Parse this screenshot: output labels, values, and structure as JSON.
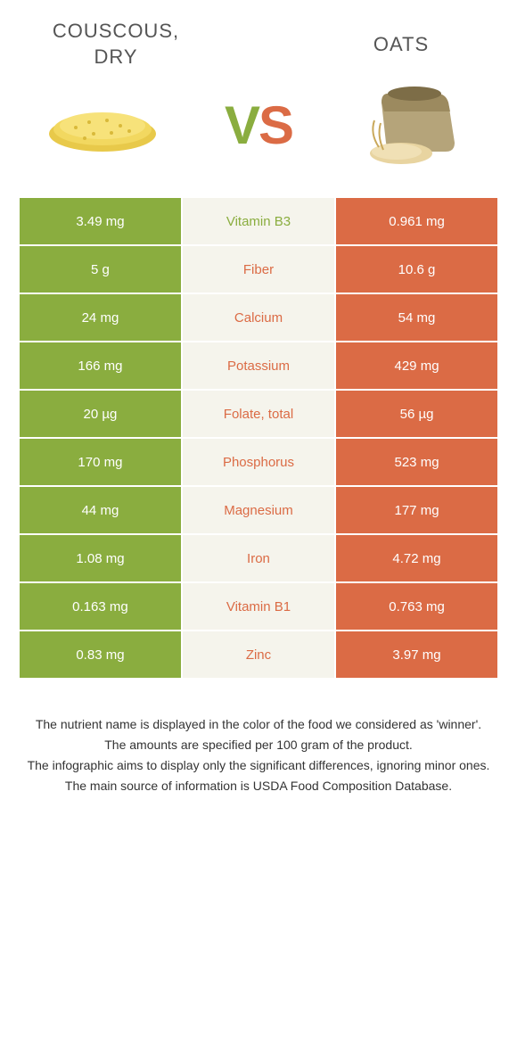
{
  "header": {
    "left_title": "COUSCOUS, DRY",
    "right_title": "OATS",
    "vs_v": "V",
    "vs_s": "S"
  },
  "colors": {
    "left": "#8aad3f",
    "right": "#db6b45",
    "mid_bg": "#f5f4ec"
  },
  "rows": [
    {
      "left": "3.49 mg",
      "name": "Vitamin B3",
      "right": "0.961 mg",
      "winner": "left"
    },
    {
      "left": "5 g",
      "name": "Fiber",
      "right": "10.6 g",
      "winner": "right"
    },
    {
      "left": "24 mg",
      "name": "Calcium",
      "right": "54 mg",
      "winner": "right"
    },
    {
      "left": "166 mg",
      "name": "Potassium",
      "right": "429 mg",
      "winner": "right"
    },
    {
      "left": "20 µg",
      "name": "Folate, total",
      "right": "56 µg",
      "winner": "right"
    },
    {
      "left": "170 mg",
      "name": "Phosphorus",
      "right": "523 mg",
      "winner": "right"
    },
    {
      "left": "44 mg",
      "name": "Magnesium",
      "right": "177 mg",
      "winner": "right"
    },
    {
      "left": "1.08 mg",
      "name": "Iron",
      "right": "4.72 mg",
      "winner": "right"
    },
    {
      "left": "0.163 mg",
      "name": "Vitamin B1",
      "right": "0.763 mg",
      "winner": "right"
    },
    {
      "left": "0.83 mg",
      "name": "Zinc",
      "right": "3.97 mg",
      "winner": "right"
    }
  ],
  "footer": {
    "line1": "The nutrient name is displayed in the color of the food we considered as 'winner'.",
    "line2": "The amounts are specified per 100 gram of the product.",
    "line3": "The infographic aims to display only the significant differences, ignoring minor ones.",
    "line4": "The main source of information is USDA Food Composition Database."
  }
}
